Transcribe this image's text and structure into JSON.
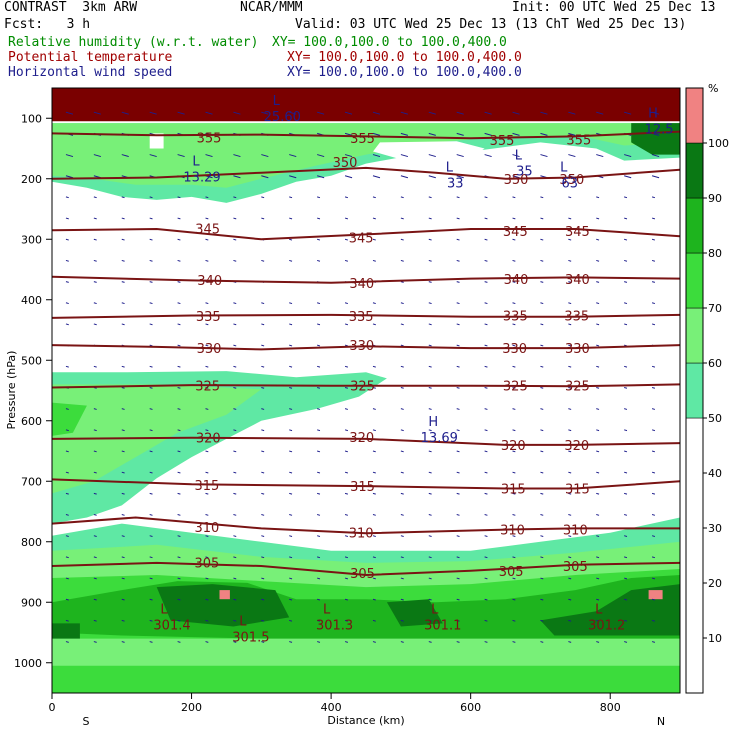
{
  "header": {
    "model": "CONTRAST  3km ARW",
    "org": "NCAR/MMM",
    "init": "Init: 00 UTC Wed 25 Dec 13",
    "fcst": "Fcst:   3 h",
    "valid": "Valid: 03 UTC Wed 25 Dec 13 (13 ChT Wed 25 Dec 13)",
    "fields": [
      {
        "name": "Relative humidity (w.r.t. water)",
        "xy": "XY= 100.0,100.0 to 100.0,400.0",
        "color": "#008c00"
      },
      {
        "name": "Potential temperature",
        "xy": "XY= 100.0,100.0 to 100.0,400.0",
        "color": "#a00000"
      },
      {
        "name": "Horizontal wind speed",
        "xy": "XY= 100.0,100.0 to 100.0,400.0",
        "color": "#1e1e8c"
      }
    ]
  },
  "chart_data": {
    "type": "heatmap",
    "xlabel": "Distance (km)",
    "ylabel": "Pressure (hPa)",
    "xlim": [
      0,
      900
    ],
    "ylim": [
      1050,
      50
    ],
    "x_ticks": [
      0,
      200,
      400,
      600,
      800
    ],
    "y_ticks": [
      100,
      200,
      300,
      400,
      500,
      600,
      700,
      800,
      900,
      1000
    ],
    "x_end_labels": {
      "left": "S",
      "right": "N"
    },
    "colorbar": {
      "unit": "%",
      "ticks": [
        10,
        20,
        30,
        40,
        50,
        60,
        70,
        80,
        90,
        100
      ],
      "bands": [
        {
          "from": 0,
          "to": 50,
          "color": "#ffffff"
        },
        {
          "from": 50,
          "to": 60,
          "color": "#5fe8a4"
        },
        {
          "from": 60,
          "to": 70,
          "color": "#78f078"
        },
        {
          "from": 70,
          "to": 80,
          "color": "#3cdc3c"
        },
        {
          "from": 80,
          "to": 90,
          "color": "#1eb41e"
        },
        {
          "from": 90,
          "to": 100,
          "color": "#0a7814"
        },
        {
          "from": 100,
          "to": 110,
          "color": "#f08282"
        }
      ]
    },
    "theta_contours": [
      {
        "value": "355",
        "points": [
          [
            0,
            125
          ],
          [
            150,
            128
          ],
          [
            300,
            127
          ],
          [
            450,
            130
          ],
          [
            600,
            133
          ],
          [
            750,
            130
          ],
          [
            900,
            122
          ]
        ],
        "labels": [
          [
            225,
            132
          ],
          [
            445,
            133
          ],
          [
            645,
            136
          ],
          [
            755,
            135
          ]
        ]
      },
      {
        "value": "350",
        "points": [
          [
            0,
            200
          ],
          [
            150,
            198
          ],
          [
            300,
            190
          ],
          [
            450,
            182
          ],
          [
            550,
            190
          ],
          [
            650,
            200
          ],
          [
            750,
            198
          ],
          [
            900,
            185
          ]
        ],
        "labels": [
          [
            420,
            172
          ],
          [
            665,
            200
          ],
          [
            745,
            200
          ]
        ]
      },
      {
        "value": "345",
        "points": [
          [
            0,
            285
          ],
          [
            150,
            283
          ],
          [
            300,
            300
          ],
          [
            450,
            292
          ],
          [
            600,
            283
          ],
          [
            750,
            283
          ],
          [
            900,
            295
          ]
        ],
        "labels": [
          [
            223,
            282
          ],
          [
            443,
            297
          ],
          [
            664,
            286
          ],
          [
            753,
            286
          ]
        ]
      },
      {
        "value": "340",
        "points": [
          [
            0,
            362
          ],
          [
            200,
            368
          ],
          [
            400,
            372
          ],
          [
            600,
            365
          ],
          [
            750,
            363
          ],
          [
            900,
            365
          ]
        ],
        "labels": [
          [
            226,
            367
          ],
          [
            444,
            372
          ],
          [
            665,
            366
          ],
          [
            753,
            366
          ]
        ]
      },
      {
        "value": "335",
        "points": [
          [
            0,
            430
          ],
          [
            200,
            426
          ],
          [
            400,
            425
          ],
          [
            600,
            428
          ],
          [
            750,
            428
          ],
          [
            900,
            425
          ]
        ],
        "labels": [
          [
            224,
            427
          ],
          [
            443,
            427
          ],
          [
            664,
            426
          ],
          [
            752,
            426
          ]
        ]
      },
      {
        "value": "330",
        "points": [
          [
            0,
            475
          ],
          [
            150,
            478
          ],
          [
            300,
            482
          ],
          [
            450,
            477
          ],
          [
            600,
            480
          ],
          [
            750,
            480
          ],
          [
            900,
            475
          ]
        ],
        "labels": [
          [
            225,
            480
          ],
          [
            444,
            475
          ],
          [
            663,
            480
          ],
          [
            753,
            480
          ]
        ]
      },
      {
        "value": "325",
        "points": [
          [
            0,
            545
          ],
          [
            200,
            541
          ],
          [
            400,
            542
          ],
          [
            600,
            542
          ],
          [
            750,
            543
          ],
          [
            900,
            540
          ]
        ],
        "labels": [
          [
            223,
            542
          ],
          [
            445,
            542
          ],
          [
            664,
            542
          ],
          [
            753,
            542
          ]
        ]
      },
      {
        "value": "320",
        "points": [
          [
            0,
            630
          ],
          [
            200,
            628
          ],
          [
            450,
            630
          ],
          [
            650,
            640
          ],
          [
            750,
            640
          ],
          [
            900,
            637
          ]
        ],
        "labels": [
          [
            224,
            628
          ],
          [
            444,
            627
          ],
          [
            661,
            640
          ],
          [
            752,
            640
          ]
        ]
      },
      {
        "value": "315",
        "points": [
          [
            0,
            697
          ],
          [
            200,
            705
          ],
          [
            450,
            708
          ],
          [
            650,
            712
          ],
          [
            750,
            712
          ],
          [
            900,
            700
          ]
        ],
        "labels": [
          [
            222,
            706
          ],
          [
            445,
            708
          ],
          [
            661,
            712
          ],
          [
            753,
            712
          ]
        ]
      },
      {
        "value": "310",
        "points": [
          [
            0,
            770
          ],
          [
            120,
            760
          ],
          [
            300,
            778
          ],
          [
            450,
            786
          ],
          [
            650,
            780
          ],
          [
            750,
            778
          ],
          [
            900,
            778
          ]
        ],
        "labels": [
          [
            222,
            776
          ],
          [
            443,
            785
          ],
          [
            660,
            780
          ],
          [
            750,
            780
          ]
        ]
      },
      {
        "value": "305",
        "points": [
          [
            0,
            840
          ],
          [
            150,
            835
          ],
          [
            300,
            840
          ],
          [
            450,
            855
          ],
          [
            600,
            848
          ],
          [
            750,
            838
          ],
          [
            900,
            835
          ]
        ],
        "labels": [
          [
            222,
            834
          ],
          [
            445,
            852
          ],
          [
            658,
            848
          ],
          [
            750,
            840
          ]
        ]
      }
    ],
    "lows": [
      {
        "type": "L",
        "x": 172,
        "p": 925,
        "value": "301.4"
      },
      {
        "type": "L",
        "x": 285,
        "p": 945,
        "value": "301.5"
      },
      {
        "type": "L",
        "x": 405,
        "p": 925,
        "value": "301.3"
      },
      {
        "type": "L",
        "x": 560,
        "p": 925,
        "value": "301.1"
      },
      {
        "type": "L",
        "x": 795,
        "p": 925,
        "value": "301.2"
      }
    ],
    "wind_labels": [
      {
        "type": "L",
        "x": 215,
        "p": 185,
        "value": "13.29"
      },
      {
        "type": "L",
        "x": 578,
        "p": 195,
        "value": "33"
      },
      {
        "type": "L",
        "x": 677,
        "p": 175,
        "value": "35"
      },
      {
        "type": "L",
        "x": 742,
        "p": 195,
        "value": "63"
      },
      {
        "type": "L",
        "x": 330,
        "p": 85,
        "value": "25.60"
      },
      {
        "type": "H",
        "x": 555,
        "p": 615,
        "value": "13.69"
      },
      {
        "type": "H",
        "x": 870,
        "p": 105,
        "value": "12.5"
      }
    ]
  }
}
